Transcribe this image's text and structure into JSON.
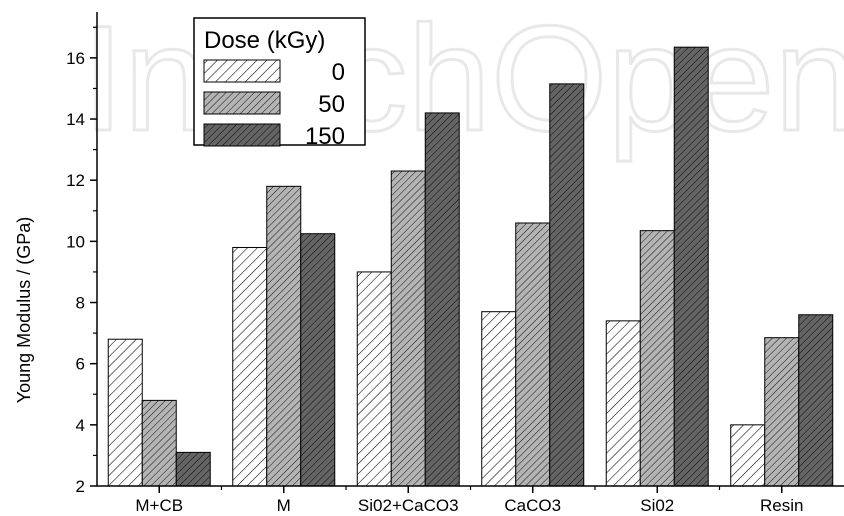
{
  "watermark": "IntechOpen",
  "chart_data": {
    "type": "bar",
    "categories": [
      "M+CB",
      "M",
      "Si02+CaCO3",
      "CaCO3",
      "Si02",
      "Resin"
    ],
    "series": [
      {
        "name": "0",
        "values": [
          6.8,
          9.8,
          9.0,
          7.7,
          7.4,
          4.0
        ],
        "fill": "#ffffff",
        "hatch_color": "#000000"
      },
      {
        "name": "50",
        "values": [
          4.8,
          11.8,
          12.3,
          10.6,
          10.35,
          6.85
        ],
        "fill": "#b4b4b4",
        "hatch_color": "#000000"
      },
      {
        "name": "150",
        "values": [
          3.1,
          10.25,
          14.2,
          15.15,
          16.35,
          7.6
        ],
        "fill": "#646464",
        "hatch_color": "#000000"
      }
    ],
    "xlabel": "",
    "ylabel": "Young Modulus / (GPa)",
    "ylim": [
      2,
      17.5
    ],
    "yticks": [
      "2",
      "4",
      "6",
      "8",
      "10",
      "12",
      "14",
      "16"
    ],
    "legend": {
      "title": "Dose (kGy)",
      "placement": "top-left"
    },
    "grid": false
  }
}
